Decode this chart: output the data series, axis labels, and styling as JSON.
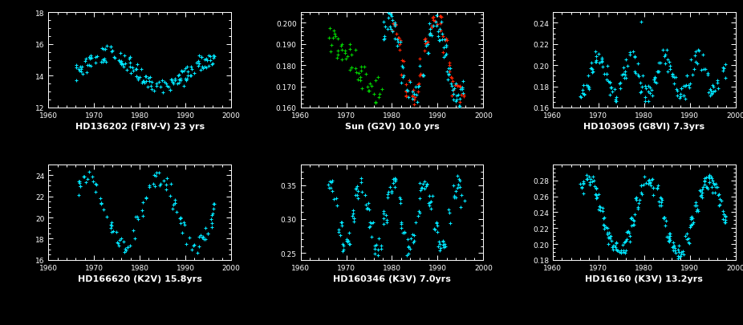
{
  "background_color": "#000000",
  "text_color": "#ffffff",
  "cyan": "#00e5ff",
  "green": "#00cc00",
  "red": "#ff2200",
  "panels": [
    {
      "title": "HD136202 (F8IV-V) 23 yrs",
      "xlim": [
        1960,
        2000
      ],
      "ylim": [
        12,
        18
      ],
      "yticks": [
        12,
        14,
        16,
        18
      ],
      "xticks": [
        1960,
        1970,
        1980,
        1990,
        2000
      ],
      "color": "#00e5ff"
    },
    {
      "title": "Sun (G2V) 10.0 yrs",
      "xlim": [
        1960,
        2000
      ],
      "ylim": [
        0.16,
        0.205
      ],
      "yticks": [
        0.16,
        0.17,
        0.18,
        0.19,
        0.2
      ],
      "ytick_labels": [
        "0.160",
        "0.170",
        "0.180",
        "0.190",
        "0.200"
      ],
      "xticks": [
        1960,
        1970,
        1980,
        1990,
        2000
      ]
    },
    {
      "title": "HD103095 (G8VI) 7.3yrs",
      "xlim": [
        1960,
        2000
      ],
      "ylim": [
        0.16,
        0.25
      ],
      "yticks": [
        0.16,
        0.18,
        0.2,
        0.22,
        0.24
      ],
      "ytick_labels": [
        "0.16",
        "0.18",
        "0.20",
        "0.22",
        "0.24"
      ],
      "xticks": [
        1960,
        1970,
        1980,
        1990,
        2000
      ],
      "color": "#00e5ff"
    },
    {
      "title": "HD166620 (K2V) 15.8yrs",
      "xlim": [
        1960,
        2000
      ],
      "ylim": [
        16,
        25
      ],
      "yticks": [
        16,
        18,
        20,
        22,
        24
      ],
      "xticks": [
        1960,
        1970,
        1980,
        1990,
        2000
      ],
      "color": "#00e5ff"
    },
    {
      "title": "HD160346 (K3V) 7.0yrs",
      "xlim": [
        1960,
        2000
      ],
      "ylim": [
        0.24,
        0.38
      ],
      "yticks": [
        0.25,
        0.3,
        0.35
      ],
      "ytick_labels": [
        "0.25",
        "0.30",
        "0.35"
      ],
      "xticks": [
        1960,
        1970,
        1980,
        1990,
        2000
      ],
      "color": "#00e5ff"
    },
    {
      "title": "HD16160 (K3V) 13.2yrs",
      "xlim": [
        1960,
        2000
      ],
      "ylim": [
        0.18,
        0.3
      ],
      "yticks": [
        0.18,
        0.2,
        0.22,
        0.24,
        0.26,
        0.28
      ],
      "ytick_labels": [
        "0.18",
        "0.20",
        "0.22",
        "0.24",
        "0.26",
        "0.28"
      ],
      "xticks": [
        1960,
        1970,
        1980,
        1990,
        2000
      ],
      "color": "#00e5ff"
    }
  ]
}
